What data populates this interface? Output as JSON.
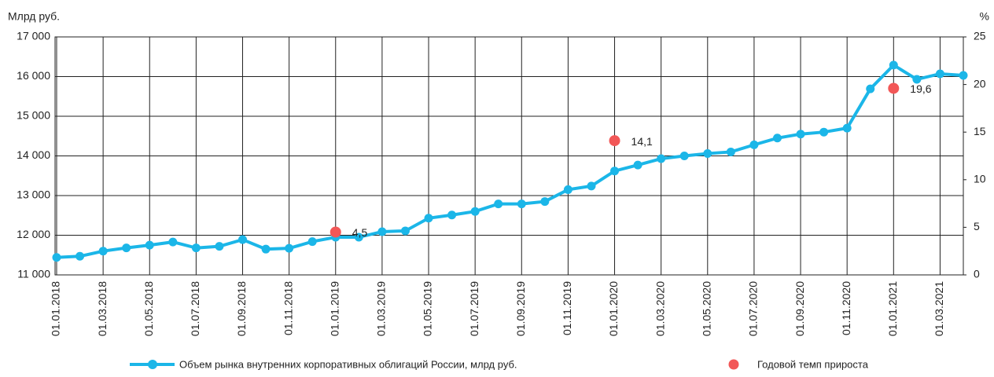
{
  "chart_data": {
    "type": "line",
    "y_axis_label": "Млрд руб.",
    "y2_axis_label": "%",
    "categories": [
      "01.01.2018",
      null,
      "01.03.2018",
      null,
      "01.05.2018",
      null,
      "01.07.2018",
      null,
      "01.09.2018",
      null,
      "01.11.2018",
      null,
      "01.01.2019",
      null,
      "01.03.2019",
      null,
      "01.05.2019",
      null,
      "01.07.2019",
      null,
      "01.09.2019",
      null,
      "01.11.2019",
      null,
      "01.01.2020",
      null,
      "01.03.2020",
      null,
      "01.05.2020",
      null,
      "01.07.2020",
      null,
      "01.09.2020",
      null,
      "01.11.2020",
      null,
      "01.01.2021",
      null,
      "01.03.2021",
      null
    ],
    "series": [
      {
        "name": "Объем рынка внутренних корпоративных облигаций России, млрд руб.",
        "color": "#1bb6e8",
        "values": [
          11440,
          11470,
          11600,
          11680,
          11750,
          11830,
          11680,
          11720,
          11890,
          11650,
          11670,
          11840,
          11950,
          11950,
          12090,
          12110,
          12430,
          12510,
          12600,
          12790,
          12790,
          12850,
          13150,
          13240,
          13620,
          13770,
          13930,
          14000,
          14060,
          14100,
          14280,
          14450,
          14550,
          14600,
          14700,
          15690,
          16290,
          15930,
          16070,
          16030
        ]
      },
      {
        "name": "Годовой темп прироста",
        "color": "#f25757",
        "axis": "y2",
        "type": "scatter",
        "values": [
          null,
          null,
          null,
          null,
          null,
          null,
          null,
          null,
          null,
          null,
          null,
          null,
          4.5,
          null,
          null,
          null,
          null,
          null,
          null,
          null,
          null,
          null,
          null,
          null,
          14.1,
          null,
          null,
          null,
          null,
          null,
          null,
          null,
          null,
          null,
          null,
          null,
          19.6,
          null,
          null,
          null
        ],
        "value_labels": [
          null,
          null,
          null,
          null,
          null,
          null,
          null,
          null,
          null,
          null,
          null,
          null,
          "4,5",
          null,
          null,
          null,
          null,
          null,
          null,
          null,
          null,
          null,
          null,
          null,
          "14,1",
          null,
          null,
          null,
          null,
          null,
          null,
          null,
          null,
          null,
          null,
          null,
          "19,6",
          null,
          null,
          null
        ]
      }
    ],
    "ylim": [
      11000,
      17000
    ],
    "yticks": [
      {
        "value": 11000,
        "label": "11 000"
      },
      {
        "value": 12000,
        "label": "12 000"
      },
      {
        "value": 13000,
        "label": "13 000"
      },
      {
        "value": 14000,
        "label": "14 000"
      },
      {
        "value": 15000,
        "label": "15 000"
      },
      {
        "value": 16000,
        "label": "16 000"
      },
      {
        "value": 17000,
        "label": "17 000"
      }
    ],
    "y2lim": [
      0,
      25
    ],
    "y2ticks": [
      0,
      5,
      10,
      15,
      20,
      25
    ],
    "grid": true
  }
}
